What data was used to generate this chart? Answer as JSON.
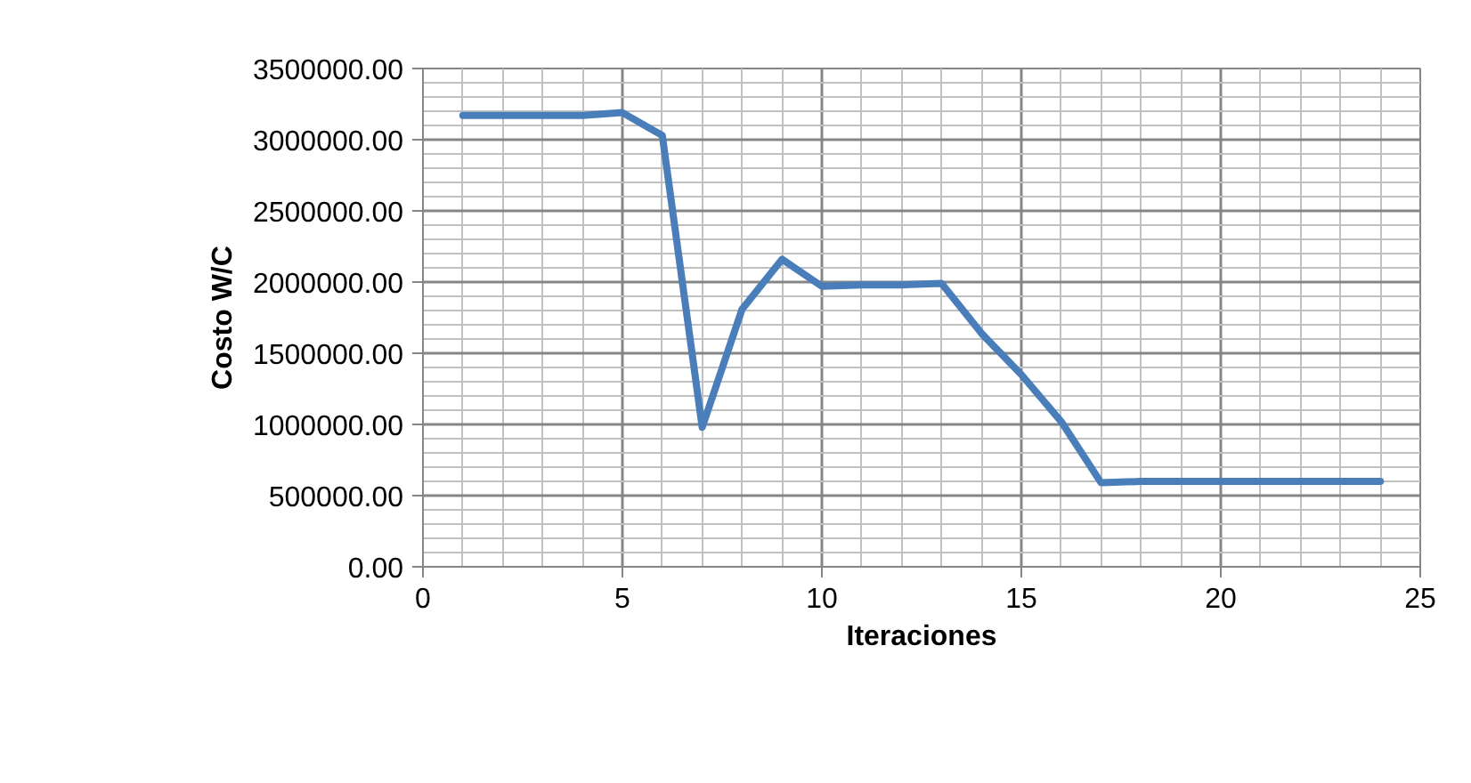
{
  "chart_data": {
    "type": "line",
    "xlabel": "Iteraciones",
    "ylabel": "Costo W/C",
    "x": [
      1,
      2,
      3,
      4,
      5,
      6,
      7,
      8,
      9,
      10,
      11,
      12,
      13,
      14,
      15,
      16,
      17,
      18,
      19,
      20,
      21,
      22,
      23,
      24
    ],
    "series": [
      {
        "color": "#4a7ebb",
        "values": [
          3170000,
          3170000,
          3170000,
          3170000,
          3190000,
          3030000,
          980000,
          1810000,
          2160000,
          1970000,
          1980000,
          1980000,
          1990000,
          1640000,
          1350000,
          1020000,
          590000,
          600000,
          600000,
          600000,
          600000,
          600000,
          600000,
          600000
        ]
      }
    ],
    "xlim": [
      0,
      25
    ],
    "xticks": [
      0,
      5,
      10,
      15,
      20,
      25
    ],
    "ylim": [
      0,
      3500000
    ],
    "yticks": [
      {
        "value": 0,
        "label": "0.00"
      },
      {
        "value": 500000,
        "label": "500000.00"
      },
      {
        "value": 1000000,
        "label": "1000000.00"
      },
      {
        "value": 1500000,
        "label": "1500000.00"
      },
      {
        "value": 2000000,
        "label": "2000000.00"
      },
      {
        "value": 2500000,
        "label": "2500000.00"
      },
      {
        "value": 3000000,
        "label": "3000000.00"
      },
      {
        "value": 3500000,
        "label": "3500000.00"
      }
    ],
    "grid": true,
    "marker": "none",
    "line_style": "solid"
  }
}
